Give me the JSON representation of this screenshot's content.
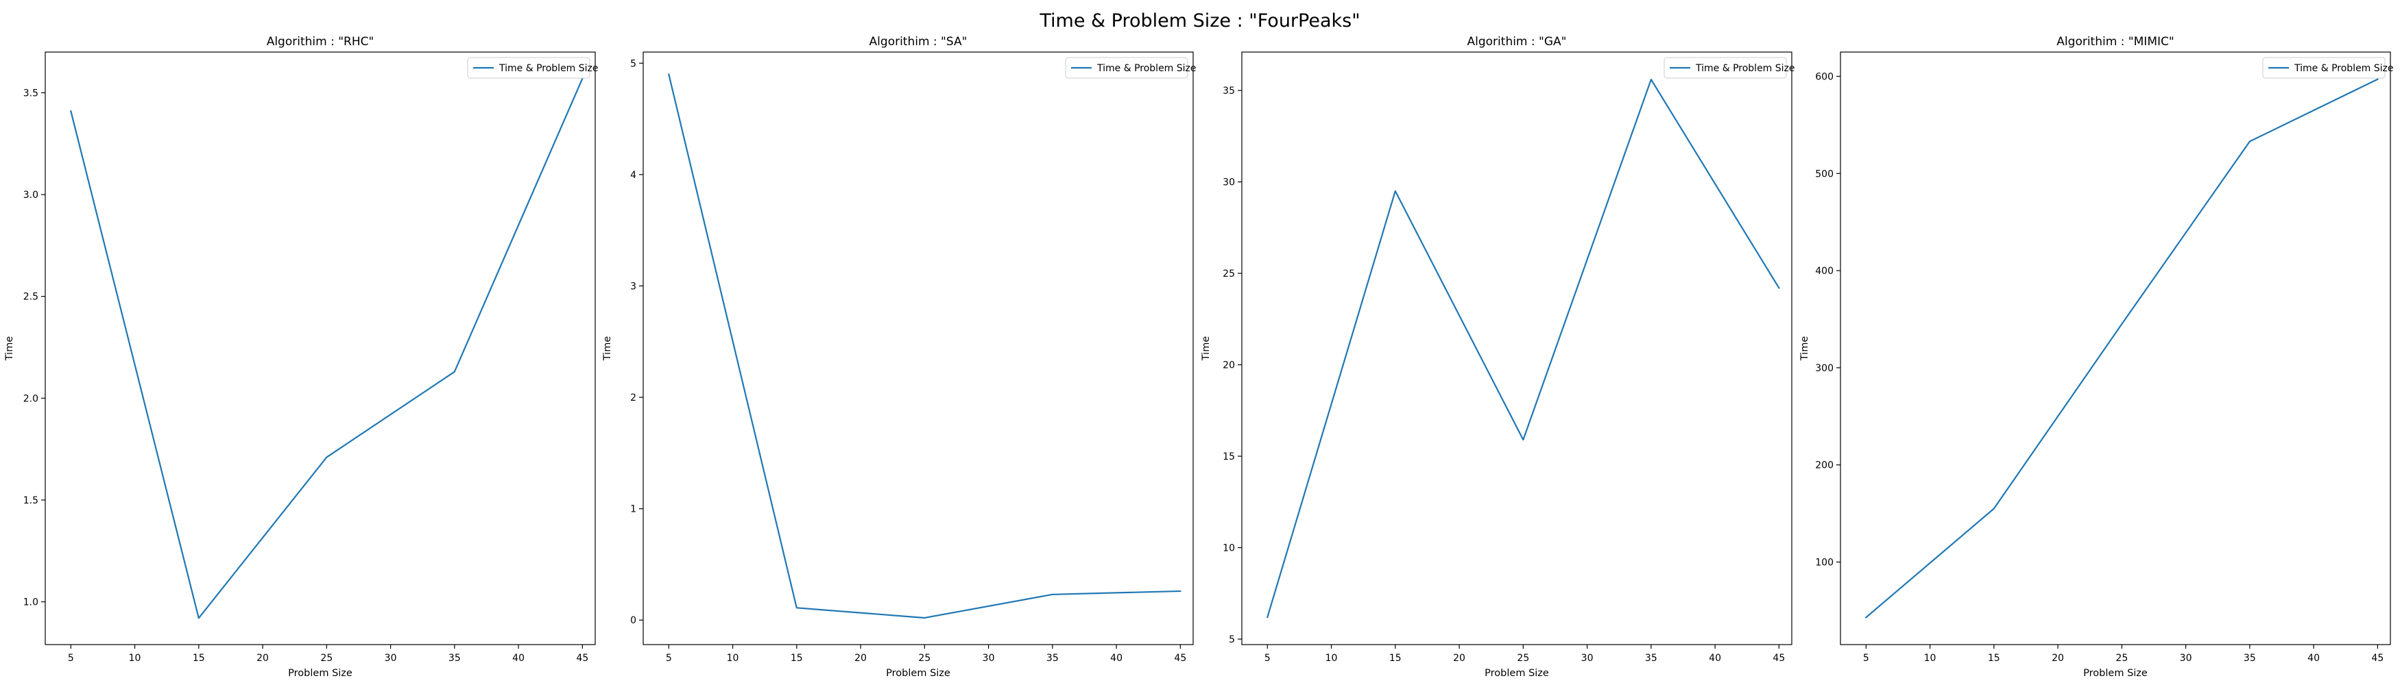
{
  "figure": {
    "suptitle": "Time & Problem Size : \"FourPeaks\"",
    "line_color": "#1f77b4",
    "background": "#ffffff"
  },
  "chart_data": [
    {
      "type": "line",
      "title": "Algorithim : \"RHC\"",
      "xlabel": "Problem Size",
      "ylabel": "Time",
      "xlim": [
        3,
        46
      ],
      "ylim": [
        0.79,
        3.7
      ],
      "xticks": [
        5,
        10,
        15,
        20,
        25,
        30,
        35,
        40,
        45
      ],
      "yticks": [
        1.0,
        1.5,
        2.0,
        2.5,
        3.0,
        3.5
      ],
      "ytick_labels": [
        "1.0",
        "1.5",
        "2.0",
        "2.5",
        "3.0",
        "3.5"
      ],
      "legend_position": "upper right",
      "grid": false,
      "series": [
        {
          "name": "Time & Problem Size",
          "x": [
            5,
            15,
            25,
            35,
            45
          ],
          "y": [
            3.41,
            0.92,
            1.71,
            2.13,
            3.57
          ]
        }
      ]
    },
    {
      "type": "line",
      "title": "Algorithim : \"SA\"",
      "xlabel": "Problem Size",
      "ylabel": "Time",
      "xlim": [
        3,
        46
      ],
      "ylim": [
        -0.22,
        5.1
      ],
      "xticks": [
        5,
        10,
        15,
        20,
        25,
        30,
        35,
        40,
        45
      ],
      "yticks": [
        0,
        1,
        2,
        3,
        4,
        5
      ],
      "ytick_labels": [
        "0",
        "1",
        "2",
        "3",
        "4",
        "5"
      ],
      "legend_position": "upper right",
      "grid": false,
      "series": [
        {
          "name": "Time & Problem Size",
          "x": [
            5,
            15,
            25,
            35,
            45
          ],
          "y": [
            4.9,
            0.11,
            0.02,
            0.23,
            0.26
          ]
        }
      ]
    },
    {
      "type": "line",
      "title": "Algorithim : \"GA\"",
      "xlabel": "Problem Size",
      "ylabel": "Time",
      "xlim": [
        3,
        46
      ],
      "ylim": [
        4.7,
        37.1
      ],
      "xticks": [
        5,
        10,
        15,
        20,
        25,
        30,
        35,
        40,
        45
      ],
      "yticks": [
        5,
        10,
        15,
        20,
        25,
        30,
        35
      ],
      "ytick_labels": [
        "5",
        "10",
        "15",
        "20",
        "25",
        "30",
        "35"
      ],
      "legend_position": "upper right",
      "grid": false,
      "series": [
        {
          "name": "Time & Problem Size",
          "x": [
            5,
            15,
            25,
            35,
            45
          ],
          "y": [
            6.2,
            29.5,
            15.9,
            35.6,
            24.2
          ]
        }
      ]
    },
    {
      "type": "line",
      "title": "Algorithim : \"MIMIC\"",
      "xlabel": "Problem Size",
      "ylabel": "Time",
      "xlim": [
        3,
        46
      ],
      "ylim": [
        15,
        625
      ],
      "xticks": [
        5,
        10,
        15,
        20,
        25,
        30,
        35,
        40,
        45
      ],
      "yticks": [
        100,
        200,
        300,
        400,
        500,
        600
      ],
      "ytick_labels": [
        "100",
        "200",
        "300",
        "400",
        "500",
        "600"
      ],
      "legend_position": "upper right",
      "grid": false,
      "series": [
        {
          "name": "Time & Problem Size",
          "x": [
            5,
            15,
            25,
            35,
            45
          ],
          "y": [
            43,
            155,
            345,
            533,
            597
          ]
        }
      ]
    }
  ]
}
